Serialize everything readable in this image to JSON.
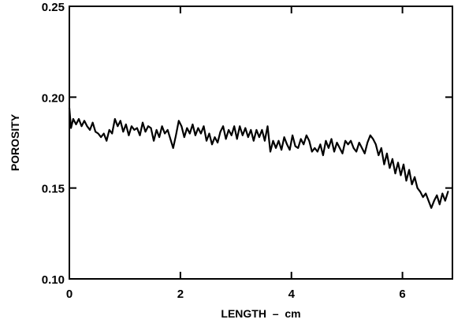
{
  "chart_data": {
    "type": "line",
    "title": "",
    "xlabel": "LENGTH  –  cm",
    "ylabel": "POROSITY",
    "xlim": [
      0,
      6.9
    ],
    "ylim": [
      0.1,
      0.25
    ],
    "x_ticks": [
      0,
      2,
      4,
      6
    ],
    "x_tick_labels": [
      "0",
      "2",
      "4",
      "6"
    ],
    "y_ticks": [
      0.1,
      0.15,
      0.2,
      0.25
    ],
    "y_tick_labels": [
      "0.10",
      "0.15",
      "0.20",
      "0.25"
    ],
    "grid": false,
    "series": [
      {
        "color": "#000000",
        "x": [
          0.0,
          0.03,
          0.07,
          0.12,
          0.17,
          0.22,
          0.27,
          0.32,
          0.37,
          0.42,
          0.47,
          0.52,
          0.57,
          0.62,
          0.67,
          0.72,
          0.77,
          0.82,
          0.87,
          0.92,
          0.97,
          1.02,
          1.07,
          1.12,
          1.17,
          1.22,
          1.27,
          1.32,
          1.37,
          1.42,
          1.47,
          1.52,
          1.57,
          1.62,
          1.67,
          1.72,
          1.77,
          1.82,
          1.87,
          1.92,
          1.97,
          2.02,
          2.07,
          2.12,
          2.17,
          2.22,
          2.27,
          2.32,
          2.37,
          2.42,
          2.47,
          2.52,
          2.57,
          2.62,
          2.67,
          2.72,
          2.77,
          2.82,
          2.87,
          2.92,
          2.97,
          3.02,
          3.07,
          3.12,
          3.17,
          3.22,
          3.27,
          3.32,
          3.37,
          3.42,
          3.47,
          3.52,
          3.57,
          3.62,
          3.67,
          3.72,
          3.77,
          3.82,
          3.87,
          3.92,
          3.97,
          4.02,
          4.07,
          4.12,
          4.17,
          4.22,
          4.27,
          4.32,
          4.37,
          4.42,
          4.47,
          4.52,
          4.57,
          4.62,
          4.67,
          4.72,
          4.77,
          4.82,
          4.87,
          4.92,
          4.97,
          5.02,
          5.07,
          5.12,
          5.17,
          5.22,
          5.27,
          5.32,
          5.37,
          5.42,
          5.47,
          5.52,
          5.57,
          5.62,
          5.67,
          5.72,
          5.77,
          5.82,
          5.87,
          5.92,
          5.97,
          6.02,
          6.07,
          6.12,
          6.17,
          6.22,
          6.27,
          6.32,
          6.37,
          6.42,
          6.47,
          6.52,
          6.57,
          6.62,
          6.67,
          6.72,
          6.77,
          6.82
        ],
        "y": [
          0.194,
          0.183,
          0.188,
          0.185,
          0.188,
          0.184,
          0.187,
          0.184,
          0.182,
          0.186,
          0.181,
          0.18,
          0.178,
          0.18,
          0.176,
          0.182,
          0.18,
          0.188,
          0.184,
          0.187,
          0.181,
          0.185,
          0.179,
          0.184,
          0.182,
          0.183,
          0.179,
          0.186,
          0.181,
          0.184,
          0.183,
          0.176,
          0.182,
          0.178,
          0.184,
          0.18,
          0.182,
          0.177,
          0.172,
          0.179,
          0.187,
          0.184,
          0.178,
          0.183,
          0.18,
          0.185,
          0.179,
          0.183,
          0.18,
          0.184,
          0.176,
          0.18,
          0.174,
          0.178,
          0.175,
          0.181,
          0.184,
          0.177,
          0.182,
          0.179,
          0.184,
          0.177,
          0.184,
          0.179,
          0.183,
          0.178,
          0.182,
          0.176,
          0.182,
          0.178,
          0.182,
          0.176,
          0.184,
          0.17,
          0.176,
          0.172,
          0.176,
          0.171,
          0.178,
          0.174,
          0.171,
          0.179,
          0.173,
          0.172,
          0.177,
          0.174,
          0.179,
          0.176,
          0.17,
          0.172,
          0.17,
          0.174,
          0.168,
          0.176,
          0.172,
          0.177,
          0.17,
          0.175,
          0.172,
          0.169,
          0.176,
          0.174,
          0.176,
          0.172,
          0.17,
          0.175,
          0.172,
          0.169,
          0.175,
          0.179,
          0.177,
          0.174,
          0.168,
          0.172,
          0.163,
          0.169,
          0.161,
          0.166,
          0.158,
          0.164,
          0.157,
          0.163,
          0.154,
          0.16,
          0.152,
          0.156,
          0.15,
          0.148,
          0.145,
          0.147,
          0.143,
          0.139,
          0.143,
          0.146,
          0.141,
          0.147,
          0.143,
          0.148
        ]
      }
    ]
  }
}
